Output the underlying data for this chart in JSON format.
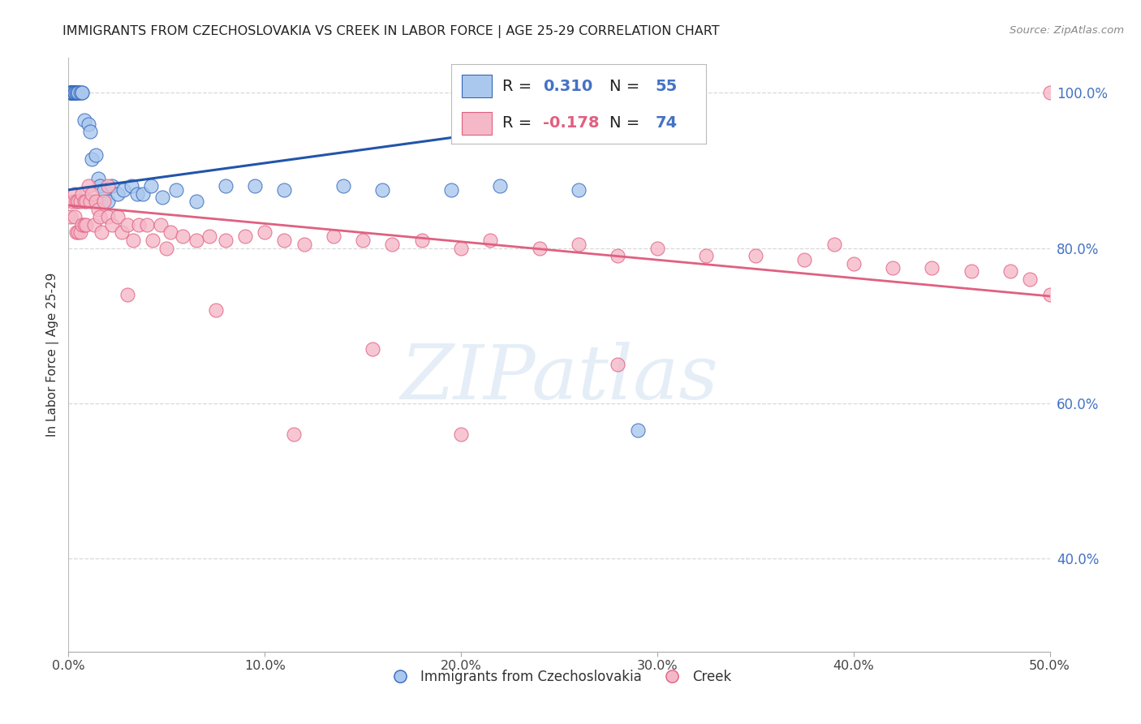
{
  "title": "IMMIGRANTS FROM CZECHOSLOVAKIA VS CREEK IN LABOR FORCE | AGE 25-29 CORRELATION CHART",
  "source": "Source: ZipAtlas.com",
  "ylabel": "In Labor Force | Age 25-29",
  "legend_blue_label": "Immigrants from Czechoslovakia",
  "legend_pink_label": "Creek",
  "R_blue": 0.31,
  "N_blue": 55,
  "R_pink": -0.178,
  "N_pink": 74,
  "xlim": [
    0.0,
    0.5
  ],
  "ylim": [
    0.28,
    1.045
  ],
  "right_yticks": [
    1.0,
    0.8,
    0.6,
    0.4
  ],
  "right_ytick_labels": [
    "100.0%",
    "80.0%",
    "60.0%",
    "40.0%"
  ],
  "xtick_values": [
    0.0,
    0.1,
    0.2,
    0.3,
    0.4,
    0.5
  ],
  "xtick_labels": [
    "0.0%",
    "10.0%",
    "20.0%",
    "30.0%",
    "40.0%",
    "50.0%"
  ],
  "grid_color": "#d8d8d8",
  "blue_fill": "#aac8ee",
  "blue_edge": "#3366bb",
  "pink_fill": "#f5b8c8",
  "pink_edge": "#e06080",
  "blue_line_color": "#2255aa",
  "pink_line_color": "#e06080",
  "watermark_text": "ZIPatlas",
  "blue_x": [
    0.001,
    0.001,
    0.001,
    0.001,
    0.001,
    0.002,
    0.002,
    0.002,
    0.002,
    0.002,
    0.002,
    0.002,
    0.003,
    0.003,
    0.003,
    0.003,
    0.003,
    0.003,
    0.003,
    0.004,
    0.004,
    0.005,
    0.005,
    0.005,
    0.006,
    0.007,
    0.007,
    0.008,
    0.01,
    0.011,
    0.012,
    0.014,
    0.015,
    0.016,
    0.018,
    0.02,
    0.022,
    0.025,
    0.028,
    0.032,
    0.035,
    0.038,
    0.042,
    0.048,
    0.055,
    0.065,
    0.08,
    0.095,
    0.11,
    0.14,
    0.16,
    0.195,
    0.22,
    0.26,
    0.29
  ],
  "blue_y": [
    1.0,
    1.0,
    1.0,
    1.0,
    1.0,
    1.0,
    1.0,
    1.0,
    1.0,
    1.0,
    1.0,
    1.0,
    1.0,
    1.0,
    1.0,
    1.0,
    1.0,
    1.0,
    1.0,
    1.0,
    1.0,
    1.0,
    1.0,
    1.0,
    1.0,
    1.0,
    1.0,
    0.965,
    0.96,
    0.95,
    0.915,
    0.92,
    0.89,
    0.88,
    0.875,
    0.86,
    0.88,
    0.87,
    0.875,
    0.88,
    0.87,
    0.87,
    0.88,
    0.865,
    0.875,
    0.86,
    0.88,
    0.88,
    0.875,
    0.88,
    0.875,
    0.875,
    0.88,
    0.875,
    0.565
  ],
  "pink_x": [
    0.001,
    0.002,
    0.003,
    0.003,
    0.004,
    0.004,
    0.005,
    0.005,
    0.006,
    0.006,
    0.007,
    0.007,
    0.008,
    0.008,
    0.009,
    0.009,
    0.01,
    0.011,
    0.012,
    0.013,
    0.014,
    0.015,
    0.016,
    0.017,
    0.018,
    0.02,
    0.022,
    0.025,
    0.027,
    0.03,
    0.033,
    0.036,
    0.04,
    0.043,
    0.047,
    0.052,
    0.058,
    0.065,
    0.072,
    0.08,
    0.09,
    0.1,
    0.11,
    0.12,
    0.135,
    0.15,
    0.165,
    0.18,
    0.2,
    0.215,
    0.24,
    0.26,
    0.28,
    0.3,
    0.325,
    0.35,
    0.375,
    0.4,
    0.42,
    0.44,
    0.46,
    0.48,
    0.49,
    0.5,
    0.5,
    0.39,
    0.28,
    0.2,
    0.155,
    0.115,
    0.075,
    0.05,
    0.03,
    0.02
  ],
  "pink_y": [
    0.84,
    0.86,
    0.87,
    0.84,
    0.86,
    0.82,
    0.86,
    0.82,
    0.86,
    0.82,
    0.87,
    0.83,
    0.86,
    0.83,
    0.86,
    0.83,
    0.88,
    0.86,
    0.87,
    0.83,
    0.86,
    0.85,
    0.84,
    0.82,
    0.86,
    0.84,
    0.83,
    0.84,
    0.82,
    0.83,
    0.81,
    0.83,
    0.83,
    0.81,
    0.83,
    0.82,
    0.815,
    0.81,
    0.815,
    0.81,
    0.815,
    0.82,
    0.81,
    0.805,
    0.815,
    0.81,
    0.805,
    0.81,
    0.8,
    0.81,
    0.8,
    0.805,
    0.79,
    0.8,
    0.79,
    0.79,
    0.785,
    0.78,
    0.775,
    0.775,
    0.77,
    0.77,
    0.76,
    0.74,
    1.0,
    0.805,
    0.65,
    0.56,
    0.67,
    0.56,
    0.72,
    0.8,
    0.74,
    0.88
  ],
  "blue_trend_x": [
    0.0,
    0.29
  ],
  "blue_trend_y": [
    0.875,
    0.975
  ],
  "pink_trend_x": [
    0.0,
    0.5
  ],
  "pink_trend_y": [
    0.855,
    0.738
  ]
}
